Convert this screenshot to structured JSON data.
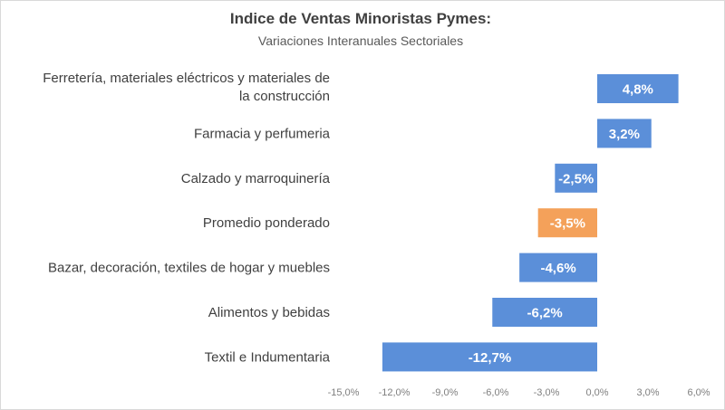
{
  "chart_data": {
    "type": "bar",
    "orientation": "horizontal",
    "title": "Indice de Ventas Minoristas Pymes:",
    "subtitle": "Variaciones Interanuales Sectoriales",
    "xlabel": "",
    "ylabel": "",
    "xlim": [
      -15.0,
      6.0
    ],
    "ticks": [
      {
        "value": -15.0,
        "label": "-15,0%"
      },
      {
        "value": -12.0,
        "label": "-12,0%"
      },
      {
        "value": -9.0,
        "label": "-9,0%"
      },
      {
        "value": -6.0,
        "label": "-6,0%"
      },
      {
        "value": -3.0,
        "label": "-3,0%"
      },
      {
        "value": 0.0,
        "label": "0,0%"
      },
      {
        "value": 3.0,
        "label": "3,0%"
      },
      {
        "value": 6.0,
        "label": "6,0%"
      }
    ],
    "grid": false,
    "legend": "none",
    "colors": {
      "default": "#5b8fd9",
      "highlight": "#f4a15a"
    },
    "bars": [
      {
        "category_lines": [
          "Ferretería, materiales eléctricos y materiales de",
          "la construcción"
        ],
        "value": 4.8,
        "label": "4,8%",
        "highlight": false
      },
      {
        "category_lines": [
          "Farmacia y perfumeria"
        ],
        "value": 3.2,
        "label": "3,2%",
        "highlight": false
      },
      {
        "category_lines": [
          "Calzado y marroquinería"
        ],
        "value": -2.5,
        "label": "-2,5%",
        "highlight": false
      },
      {
        "category_lines": [
          "Promedio ponderado"
        ],
        "value": -3.5,
        "label": "-3,5%",
        "highlight": true
      },
      {
        "category_lines": [
          "Bazar, decoración, textiles de hogar y muebles"
        ],
        "value": -4.6,
        "label": "-4,6%",
        "highlight": false
      },
      {
        "category_lines": [
          "Alimentos y bebidas"
        ],
        "value": -6.2,
        "label": "-6,2%",
        "highlight": false
      },
      {
        "category_lines": [
          "Textil e Indumentaria"
        ],
        "value": -12.7,
        "label": "-12,7%",
        "highlight": false
      }
    ]
  }
}
